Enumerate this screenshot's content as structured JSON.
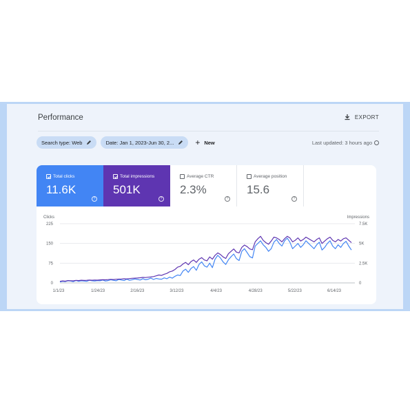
{
  "header": {
    "title": "Performance",
    "export_label": "EXPORT"
  },
  "filters": {
    "search_type": "Search type: Web",
    "date": "Date: Jan 1, 2023-Jun 30, 2...",
    "new_label": "New",
    "last_updated": "Last updated: 3 hours ago"
  },
  "metrics": {
    "clicks": {
      "label": "Total clicks",
      "value": "11.6K",
      "checked": true,
      "color": "#4285f4"
    },
    "impressions": {
      "label": "Total impressions",
      "value": "501K",
      "checked": true,
      "color": "#5e35b1"
    },
    "ctr": {
      "label": "Average CTR",
      "value": "2.3%",
      "checked": false
    },
    "position": {
      "label": "Average position",
      "value": "15.6",
      "checked": false
    }
  },
  "chart_data": {
    "type": "line",
    "left_axis_label": "Clicks",
    "right_axis_label": "Impressions",
    "left_ticks": [
      "225",
      "150",
      "75",
      "0"
    ],
    "right_ticks": [
      "7.5K",
      "5K",
      "2.5K",
      "0"
    ],
    "x_tick_labels": [
      "1/1/23",
      "1/24/23",
      "2/16/23",
      "3/12/23",
      "4/4/23",
      "4/28/23",
      "5/22/23",
      "6/14/23"
    ],
    "left_ylim": [
      0,
      225
    ],
    "right_ylim": [
      0,
      7500
    ],
    "grid": true,
    "series": [
      {
        "name": "Clicks",
        "color": "#4285f4",
        "axis": "left",
        "values": [
          4,
          6,
          5,
          8,
          7,
          5,
          9,
          6,
          8,
          7,
          6,
          10,
          8,
          7,
          9,
          8,
          11,
          7,
          9,
          12,
          10,
          8,
          13,
          11,
          9,
          14,
          10,
          12,
          15,
          13,
          11,
          16,
          12,
          14,
          18,
          13,
          17,
          15,
          14,
          19,
          16,
          22,
          18,
          25,
          30,
          28,
          45,
          52,
          40,
          55,
          62,
          48,
          70,
          80,
          65,
          60,
          75,
          58,
          90,
          105,
          95,
          80,
          70,
          88,
          100,
          110,
          92,
          85,
          120,
          130,
          115,
          100,
          95,
          140,
          150,
          160,
          145,
          135,
          120,
          130,
          155,
          165,
          150,
          140,
          160,
          170,
          155,
          130,
          140,
          150,
          135,
          145,
          160,
          150,
          140,
          130,
          145,
          155,
          125,
          135,
          150,
          160,
          140,
          130,
          145,
          135,
          150,
          158,
          140,
          125
        ]
      },
      {
        "name": "Impressions",
        "color": "#5e35b1",
        "axis": "right",
        "values": [
          200,
          250,
          220,
          300,
          280,
          260,
          320,
          300,
          340,
          310,
          330,
          360,
          340,
          370,
          350,
          380,
          400,
          390,
          420,
          450,
          430,
          460,
          480,
          500,
          520,
          510,
          550,
          580,
          600,
          620,
          650,
          700,
          680,
          720,
          750,
          800,
          900,
          1000,
          950,
          1100,
          1200,
          1400,
          1500,
          1700,
          2000,
          2100,
          2400,
          2600,
          2300,
          2700,
          2900,
          2600,
          3000,
          3200,
          2900,
          2800,
          3300,
          3000,
          3500,
          3800,
          3600,
          3300,
          3100,
          3700,
          4000,
          4300,
          3900,
          3800,
          4500,
          4800,
          4600,
          4300,
          4200,
          5200,
          5600,
          5900,
          5400,
          5100,
          4900,
          5300,
          5800,
          5700,
          5500,
          5200,
          5600,
          5900,
          5700,
          5200,
          5400,
          5700,
          5300,
          5500,
          5800,
          5600,
          5400,
          5200,
          5500,
          5700,
          5000,
          5300,
          5600,
          5800,
          5400,
          5200,
          5500,
          5300,
          5600,
          5700,
          5400,
          5100
        ]
      }
    ]
  }
}
